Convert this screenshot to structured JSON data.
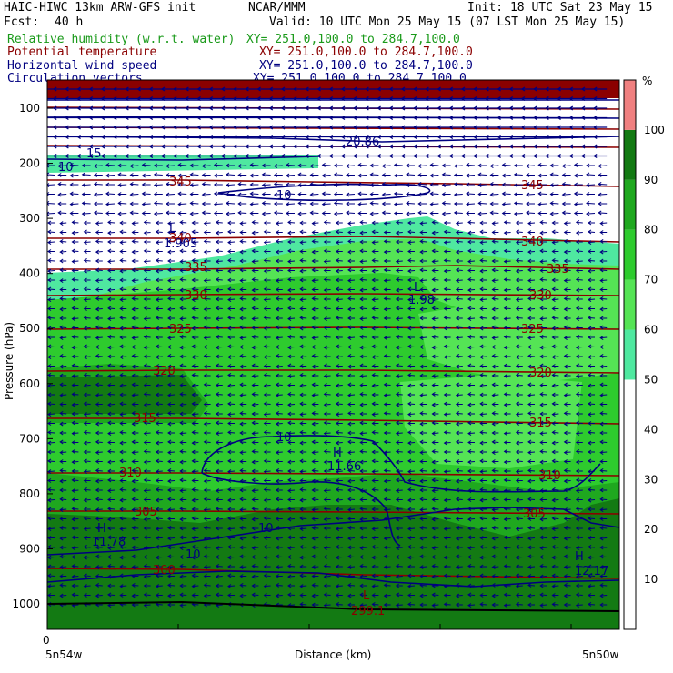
{
  "header": {
    "model": "HAIC-HIWC 13km ARW-GFS init",
    "org": "NCAR/MMM",
    "init": "Init: 18 UTC Sat 23 May 15",
    "fcst_label": "Fcst:",
    "fcst_value": "40 h",
    "valid": "Valid: 10 UTC Mon 25 May 15 (07 LST Mon 25 May 15)"
  },
  "fields": [
    {
      "name": "Relative humidity (w.r.t. water)",
      "xy": "XY= 251.0,100.0 to 284.7,100.0",
      "color": "#1a9a1a"
    },
    {
      "name": "Potential temperature",
      "xy": "XY= 251.0,100.0 to 284.7,100.0",
      "color": "#8b0000"
    },
    {
      "name": "Horizontal wind speed",
      "xy": "XY= 251.0,100.0 to 284.7,100.0",
      "color": "#000080"
    },
    {
      "name": "Circulation vectors",
      "xy": "XY= 251.0,100.0 to 284.7,100.0",
      "color": "#000080"
    }
  ],
  "axes": {
    "ylabel": "Pressure (hPa)",
    "xlabel": "Distance (km)",
    "x_zero": "0",
    "left_location": "5n54w",
    "right_location": "5n50w",
    "colorbar_unit": "%"
  },
  "chart_data": {
    "type": "heatmap",
    "description_fields": [
      "relative humidity fill",
      "potential temperature contours",
      "wind speed contours",
      "circulation vectors"
    ],
    "y_ticks": [
      100,
      200,
      300,
      400,
      500,
      600,
      700,
      800,
      900,
      1000
    ],
    "colorbar": {
      "ticks": [
        10,
        20,
        30,
        40,
        50,
        60,
        70,
        80,
        90,
        100
      ],
      "bins": [
        {
          "range": [
            0,
            50
          ],
          "color": "#ffffff"
        },
        {
          "range": [
            50,
            60
          ],
          "color": "#4fe8a0"
        },
        {
          "range": [
            60,
            70
          ],
          "color": "#55e455"
        },
        {
          "range": [
            70,
            80
          ],
          "color": "#2ecb2e"
        },
        {
          "range": [
            80,
            90
          ],
          "color": "#1fa81f"
        },
        {
          "range": [
            90,
            100
          ],
          "color": "#137a13"
        },
        {
          "range": [
            100,
            110
          ],
          "color": "#f08080"
        }
      ]
    },
    "theta_contours": [
      {
        "value": 345,
        "label": "345"
      },
      {
        "value": 340,
        "label": "340"
      },
      {
        "value": 335,
        "label": "335"
      },
      {
        "value": 330,
        "label": "330"
      },
      {
        "value": 325,
        "label": "325"
      },
      {
        "value": 320,
        "label": "320"
      },
      {
        "value": 315,
        "label": "315"
      },
      {
        "value": 310,
        "label": "310"
      },
      {
        "value": 305,
        "label": "305"
      },
      {
        "value": 300,
        "label": "300"
      }
    ],
    "wind_labels": [
      "10",
      "15",
      "20.86",
      "11.66",
      "11.78",
      "12.17"
    ],
    "extrema": [
      {
        "kind": "L",
        "value": "1.98"
      },
      {
        "kind": "L",
        "value": "1.905"
      },
      {
        "kind": "H",
        "value": "11.66"
      },
      {
        "kind": "H",
        "value": "11.78"
      },
      {
        "kind": "H",
        "value": "12.17"
      },
      {
        "kind": "L",
        "value": "299.1"
      }
    ]
  }
}
